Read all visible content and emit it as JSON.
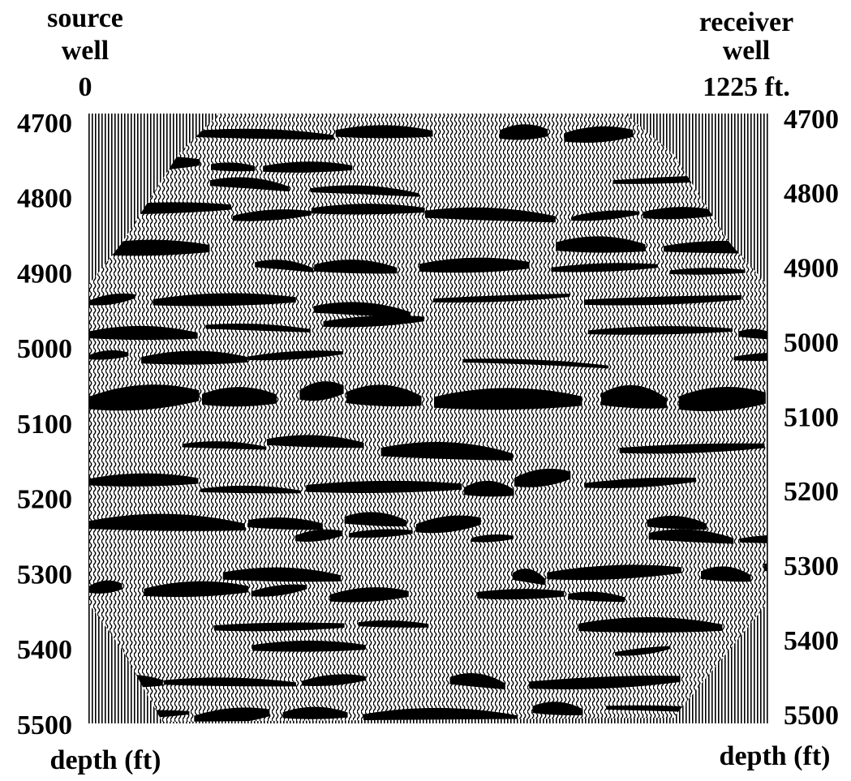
{
  "left_axis": {
    "header": [
      "source",
      "well",
      "0"
    ],
    "ticks": [
      4700,
      4800,
      4900,
      5000,
      5100,
      5200,
      5300,
      5400,
      5500
    ],
    "label": "depth (ft)"
  },
  "right_axis": {
    "header": [
      "receiver",
      "well",
      "1225 ft."
    ],
    "ticks": [
      4700,
      4800,
      4900,
      5000,
      5100,
      5200,
      5300,
      5400,
      5500
    ],
    "label": "depth (ft)"
  }
}
